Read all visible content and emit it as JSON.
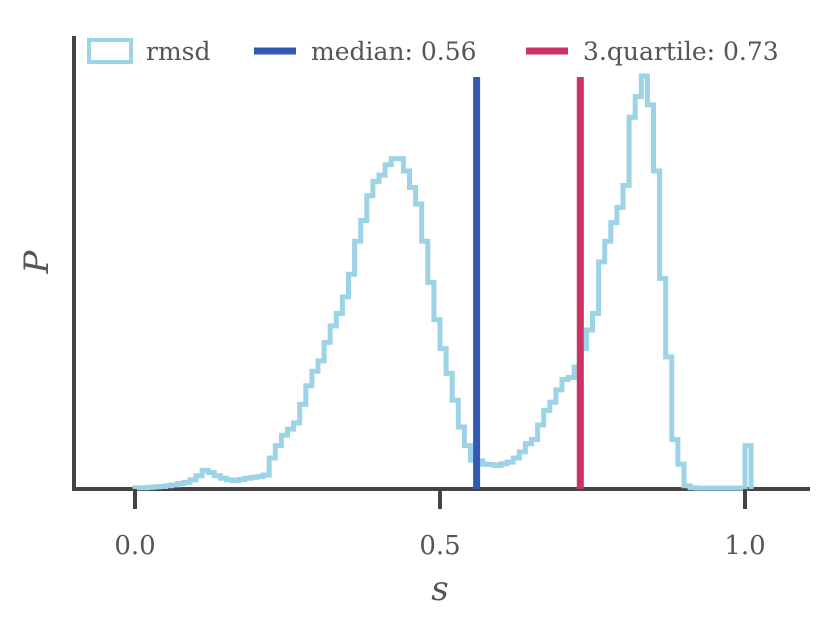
{
  "chart_data": {
    "type": "histogram-step",
    "title": "",
    "xlabel": "s",
    "ylabel": "P",
    "xlim": [
      -0.1,
      1.1
    ],
    "ylim": [
      0,
      1
    ],
    "grid": false,
    "y_ticks_shown": false,
    "x_ticks": [
      0.0,
      0.5,
      1.0
    ],
    "x_tick_labels": [
      "0.0",
      "0.5",
      "1.0"
    ],
    "legend": {
      "placement": "top",
      "entries": [
        {
          "label": "rmsd",
          "kind": "patch"
        },
        {
          "label": "median: 0.56",
          "kind": "line"
        },
        {
          "label": "3.quartile: 0.73",
          "kind": "line"
        }
      ]
    },
    "series": [
      {
        "name": "rmsd",
        "color": "#9dd3e6",
        "bin_width": 0.01,
        "bin_edges_start": 0.0,
        "density": [
          0.003,
          0.003,
          0.004,
          0.005,
          0.006,
          0.008,
          0.01,
          0.013,
          0.016,
          0.022,
          0.032,
          0.045,
          0.04,
          0.032,
          0.026,
          0.022,
          0.02,
          0.023,
          0.026,
          0.028,
          0.03,
          0.034,
          0.075,
          0.105,
          0.13,
          0.145,
          0.16,
          0.205,
          0.25,
          0.285,
          0.31,
          0.355,
          0.395,
          0.425,
          0.465,
          0.52,
          0.6,
          0.65,
          0.71,
          0.745,
          0.76,
          0.785,
          0.8,
          0.8,
          0.77,
          0.73,
          0.69,
          0.6,
          0.5,
          0.41,
          0.34,
          0.28,
          0.215,
          0.15,
          0.105,
          0.07,
          0.068,
          0.06,
          0.059,
          0.057,
          0.061,
          0.065,
          0.075,
          0.09,
          0.11,
          0.12,
          0.155,
          0.19,
          0.21,
          0.24,
          0.265,
          0.27,
          0.295,
          0.34,
          0.385,
          0.425,
          0.55,
          0.6,
          0.645,
          0.682,
          0.735,
          0.9,
          0.95,
          1.0,
          0.93,
          0.77,
          0.51,
          0.32,
          0.12,
          0.06,
          0.008,
          0.003,
          0.002,
          0.002,
          0.002,
          0.002,
          0.002,
          0.002,
          0.002,
          0.002,
          0.105
        ],
        "density_note_scale": "normalized to peak = 1"
      }
    ],
    "vlines": [
      {
        "name": "median",
        "label": "median: 0.56",
        "x": 0.56,
        "color": "#3259b4"
      },
      {
        "name": "3.quartile",
        "label": "3.quartile: 0.73",
        "x": 0.73,
        "color": "#cc3366"
      }
    ]
  },
  "colors": {
    "axis": "#444444",
    "text": "#555555",
    "hist": "#9dd3e6",
    "median": "#3259b4",
    "quartile": "#cc3366"
  }
}
